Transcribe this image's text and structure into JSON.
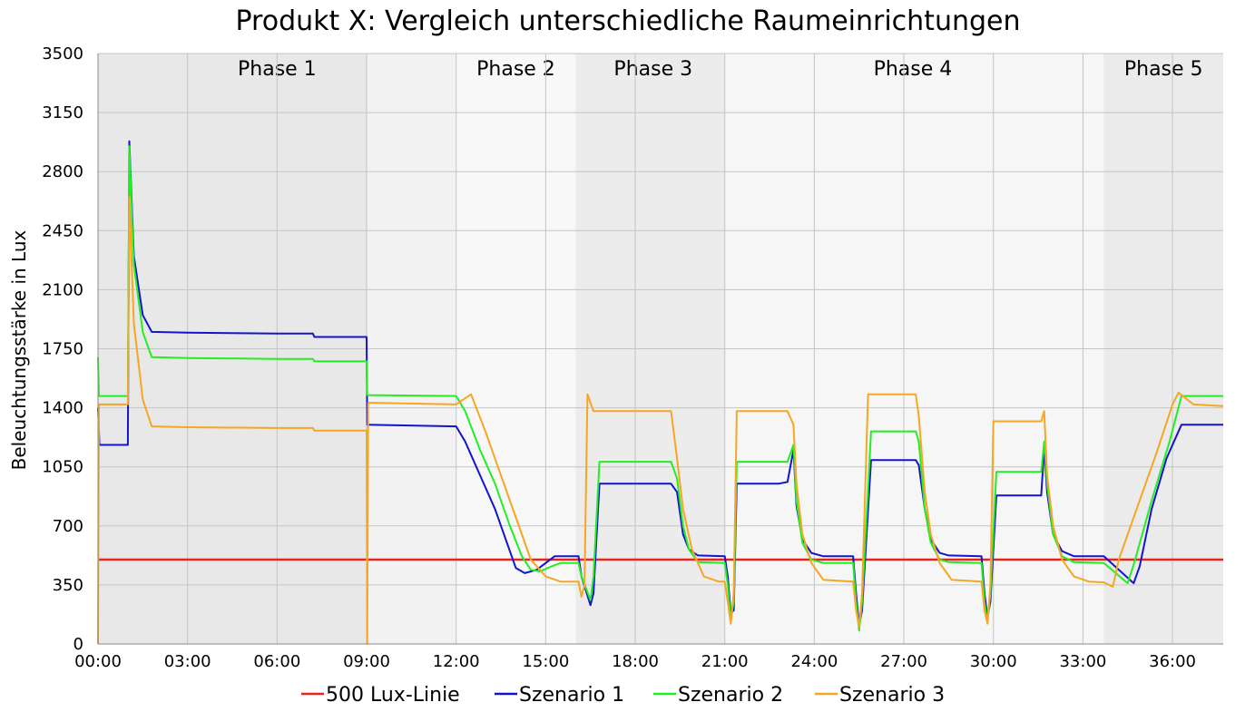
{
  "chart_data": {
    "type": "line",
    "title": "Produkt X: Vergleich unterschiedliche Raumeinrichtungen",
    "xlabel": "",
    "ylabel": "Beleuchtungsstärke in Lux",
    "xlim": [
      0,
      37.7
    ],
    "ylim": [
      0,
      3500
    ],
    "yticks": [
      0,
      350,
      700,
      1050,
      1400,
      1750,
      2100,
      2450,
      2800,
      3150,
      3500
    ],
    "xticks": [
      {
        "v": 0,
        "label": "00:00"
      },
      {
        "v": 3,
        "label": "03:00"
      },
      {
        "v": 6,
        "label": "06:00"
      },
      {
        "v": 9,
        "label": "09:00"
      },
      {
        "v": 12,
        "label": "12:00"
      },
      {
        "v": 15,
        "label": "15:00"
      },
      {
        "v": 18,
        "label": "18:00"
      },
      {
        "v": 21,
        "label": "21:00"
      },
      {
        "v": 24,
        "label": "24:00"
      },
      {
        "v": 27,
        "label": "27:00"
      },
      {
        "v": 30,
        "label": "30:00"
      },
      {
        "v": 33,
        "label": "33:00"
      },
      {
        "v": 36,
        "label": "36:00"
      }
    ],
    "grid": true,
    "legend_position": "bottom",
    "phases": [
      {
        "label": "Phase 1",
        "start": 0,
        "end": 9,
        "label_x": 6,
        "shade": "#e8e8e8"
      },
      {
        "label": "Phase 2",
        "start": 9,
        "end": 12,
        "label_x": 14,
        "shade": "#f2f2f2"
      },
      {
        "label": "",
        "start": 12,
        "end": 16,
        "label_x": 14,
        "shade": "#f8f8f8"
      },
      {
        "label": "Phase 3",
        "start": 16,
        "end": 21,
        "label_x": 18.6,
        "shade": "#ececec"
      },
      {
        "label": "Phase 4",
        "start": 21,
        "end": 33.7,
        "label_x": 27.3,
        "shade": "#f6f6f6"
      },
      {
        "label": "Phase 5",
        "start": 33.7,
        "end": 37.7,
        "label_x": 35.7,
        "shade": "#ebebeb"
      }
    ],
    "series": [
      {
        "name": "500 Lux-Linie",
        "color": "#e8241c",
        "points": [
          [
            0,
            500
          ],
          [
            37.7,
            500
          ]
        ]
      },
      {
        "name": "Szenario 1",
        "color": "#1414cc",
        "points": [
          [
            0,
            1400
          ],
          [
            0.05,
            1180
          ],
          [
            1,
            1180
          ],
          [
            1.05,
            2980
          ],
          [
            1.2,
            2300
          ],
          [
            1.5,
            1950
          ],
          [
            1.8,
            1850
          ],
          [
            3,
            1845
          ],
          [
            6,
            1840
          ],
          [
            7.2,
            1840
          ],
          [
            7.25,
            1820
          ],
          [
            9,
            1820
          ],
          [
            9.02,
            1300
          ],
          [
            12,
            1290
          ],
          [
            12.3,
            1200
          ],
          [
            12.8,
            1000
          ],
          [
            13.3,
            800
          ],
          [
            13.8,
            550
          ],
          [
            14,
            450
          ],
          [
            14.3,
            420
          ],
          [
            14.7,
            440
          ],
          [
            15,
            480
          ],
          [
            15.3,
            520
          ],
          [
            16.1,
            520
          ],
          [
            16.2,
            400
          ],
          [
            16.5,
            230
          ],
          [
            16.6,
            300
          ],
          [
            16.8,
            950
          ],
          [
            19.2,
            950
          ],
          [
            19.4,
            900
          ],
          [
            19.6,
            650
          ],
          [
            19.8,
            560
          ],
          [
            20.1,
            525
          ],
          [
            21,
            520
          ],
          [
            21.1,
            400
          ],
          [
            21.2,
            180
          ],
          [
            21.3,
            200
          ],
          [
            21.4,
            950
          ],
          [
            22.8,
            950
          ],
          [
            23.1,
            960
          ],
          [
            23.3,
            1150
          ],
          [
            23.4,
            820
          ],
          [
            23.6,
            620
          ],
          [
            23.9,
            540
          ],
          [
            24.3,
            520
          ],
          [
            25.3,
            520
          ],
          [
            25.4,
            300
          ],
          [
            25.5,
            110
          ],
          [
            25.6,
            200
          ],
          [
            25.9,
            1090
          ],
          [
            27.4,
            1090
          ],
          [
            27.5,
            1060
          ],
          [
            27.7,
            800
          ],
          [
            27.9,
            620
          ],
          [
            28.2,
            540
          ],
          [
            28.5,
            525
          ],
          [
            29.6,
            520
          ],
          [
            29.7,
            300
          ],
          [
            29.8,
            160
          ],
          [
            29.9,
            250
          ],
          [
            30.1,
            880
          ],
          [
            31.6,
            880
          ],
          [
            31.7,
            1160
          ],
          [
            31.8,
            900
          ],
          [
            32,
            650
          ],
          [
            32.3,
            550
          ],
          [
            32.7,
            520
          ],
          [
            33.7,
            520
          ],
          [
            34.7,
            360
          ],
          [
            34.9,
            460
          ],
          [
            35.3,
            800
          ],
          [
            35.8,
            1100
          ],
          [
            36.3,
            1300
          ],
          [
            37.7,
            1300
          ]
        ]
      },
      {
        "name": "Szenario 2",
        "color": "#22ee22",
        "points": [
          [
            0,
            1700
          ],
          [
            0.03,
            1470
          ],
          [
            1,
            1470
          ],
          [
            1.05,
            2950
          ],
          [
            1.2,
            2250
          ],
          [
            1.5,
            1850
          ],
          [
            1.8,
            1700
          ],
          [
            3,
            1695
          ],
          [
            6,
            1690
          ],
          [
            7.2,
            1690
          ],
          [
            7.25,
            1675
          ],
          [
            9,
            1675
          ],
          [
            9.02,
            1475
          ],
          [
            12,
            1470
          ],
          [
            12.3,
            1380
          ],
          [
            12.8,
            1150
          ],
          [
            13.3,
            950
          ],
          [
            13.8,
            700
          ],
          [
            14.2,
            520
          ],
          [
            14.5,
            440
          ],
          [
            14.8,
            430
          ],
          [
            15.2,
            460
          ],
          [
            15.5,
            480
          ],
          [
            16.1,
            480
          ],
          [
            16.2,
            400
          ],
          [
            16.5,
            260
          ],
          [
            16.6,
            400
          ],
          [
            16.8,
            1080
          ],
          [
            19.2,
            1080
          ],
          [
            19.4,
            980
          ],
          [
            19.6,
            700
          ],
          [
            19.8,
            560
          ],
          [
            20.1,
            485
          ],
          [
            21,
            480
          ],
          [
            21.1,
            350
          ],
          [
            21.2,
            150
          ],
          [
            21.3,
            250
          ],
          [
            21.4,
            1080
          ],
          [
            23.1,
            1080
          ],
          [
            23.3,
            1180
          ],
          [
            23.4,
            850
          ],
          [
            23.6,
            600
          ],
          [
            23.9,
            500
          ],
          [
            24.3,
            480
          ],
          [
            25.3,
            480
          ],
          [
            25.4,
            250
          ],
          [
            25.5,
            80
          ],
          [
            25.6,
            250
          ],
          [
            25.9,
            1260
          ],
          [
            27.4,
            1260
          ],
          [
            27.5,
            1200
          ],
          [
            27.7,
            800
          ],
          [
            27.9,
            600
          ],
          [
            28.2,
            500
          ],
          [
            28.5,
            485
          ],
          [
            29.6,
            480
          ],
          [
            29.7,
            250
          ],
          [
            29.8,
            130
          ],
          [
            29.9,
            300
          ],
          [
            30.1,
            1020
          ],
          [
            31.6,
            1020
          ],
          [
            31.7,
            1200
          ],
          [
            31.8,
            950
          ],
          [
            32,
            650
          ],
          [
            32.3,
            520
          ],
          [
            32.7,
            485
          ],
          [
            33.7,
            480
          ],
          [
            34.5,
            360
          ],
          [
            34.7,
            470
          ],
          [
            35.3,
            850
          ],
          [
            35.9,
            1200
          ],
          [
            36.3,
            1470
          ],
          [
            37.7,
            1470
          ]
        ]
      },
      {
        "name": "Szenario 3",
        "color": "#f5a623",
        "points": [
          [
            0,
            0
          ],
          [
            0.03,
            1420
          ],
          [
            1,
            1420
          ],
          [
            1.05,
            2650
          ],
          [
            1.2,
            1900
          ],
          [
            1.5,
            1450
          ],
          [
            1.8,
            1290
          ],
          [
            3,
            1285
          ],
          [
            6,
            1280
          ],
          [
            7.2,
            1280
          ],
          [
            7.25,
            1265
          ],
          [
            9,
            1265
          ],
          [
            9.02,
            0
          ],
          [
            9.05,
            1430
          ],
          [
            12,
            1420
          ],
          [
            12.5,
            1480
          ],
          [
            13,
            1250
          ],
          [
            13.5,
            1000
          ],
          [
            14,
            750
          ],
          [
            14.5,
            500
          ],
          [
            15,
            400
          ],
          [
            15.5,
            370
          ],
          [
            16.1,
            370
          ],
          [
            16.2,
            280
          ],
          [
            16.3,
            350
          ],
          [
            16.4,
            1480
          ],
          [
            16.6,
            1380
          ],
          [
            19.2,
            1380
          ],
          [
            19.4,
            1100
          ],
          [
            19.6,
            800
          ],
          [
            19.9,
            560
          ],
          [
            20.3,
            400
          ],
          [
            20.8,
            370
          ],
          [
            21,
            370
          ],
          [
            21.1,
            250
          ],
          [
            21.2,
            120
          ],
          [
            21.3,
            300
          ],
          [
            21.4,
            1380
          ],
          [
            23.1,
            1380
          ],
          [
            23.3,
            1300
          ],
          [
            23.4,
            950
          ],
          [
            23.6,
            650
          ],
          [
            23.9,
            480
          ],
          [
            24.3,
            380
          ],
          [
            25.3,
            370
          ],
          [
            25.4,
            200
          ],
          [
            25.5,
            100
          ],
          [
            25.6,
            300
          ],
          [
            25.8,
            1480
          ],
          [
            27.4,
            1480
          ],
          [
            27.5,
            1350
          ],
          [
            27.7,
            900
          ],
          [
            27.9,
            650
          ],
          [
            28.2,
            480
          ],
          [
            28.6,
            380
          ],
          [
            29.6,
            370
          ],
          [
            29.7,
            200
          ],
          [
            29.8,
            120
          ],
          [
            29.9,
            350
          ],
          [
            30,
            1320
          ],
          [
            31.6,
            1320
          ],
          [
            31.7,
            1380
          ],
          [
            31.8,
            1000
          ],
          [
            32,
            700
          ],
          [
            32.3,
            500
          ],
          [
            32.7,
            400
          ],
          [
            33.2,
            370
          ],
          [
            33.7,
            365
          ],
          [
            34,
            340
          ],
          [
            34.2,
            500
          ],
          [
            34.8,
            800
          ],
          [
            35.5,
            1150
          ],
          [
            36,
            1420
          ],
          [
            36.2,
            1490
          ],
          [
            36.7,
            1420
          ],
          [
            37.7,
            1410
          ]
        ]
      }
    ],
    "legend": [
      "500 Lux-Linie",
      "Szenario 1",
      "Szenario 2",
      "Szenario 3"
    ]
  }
}
